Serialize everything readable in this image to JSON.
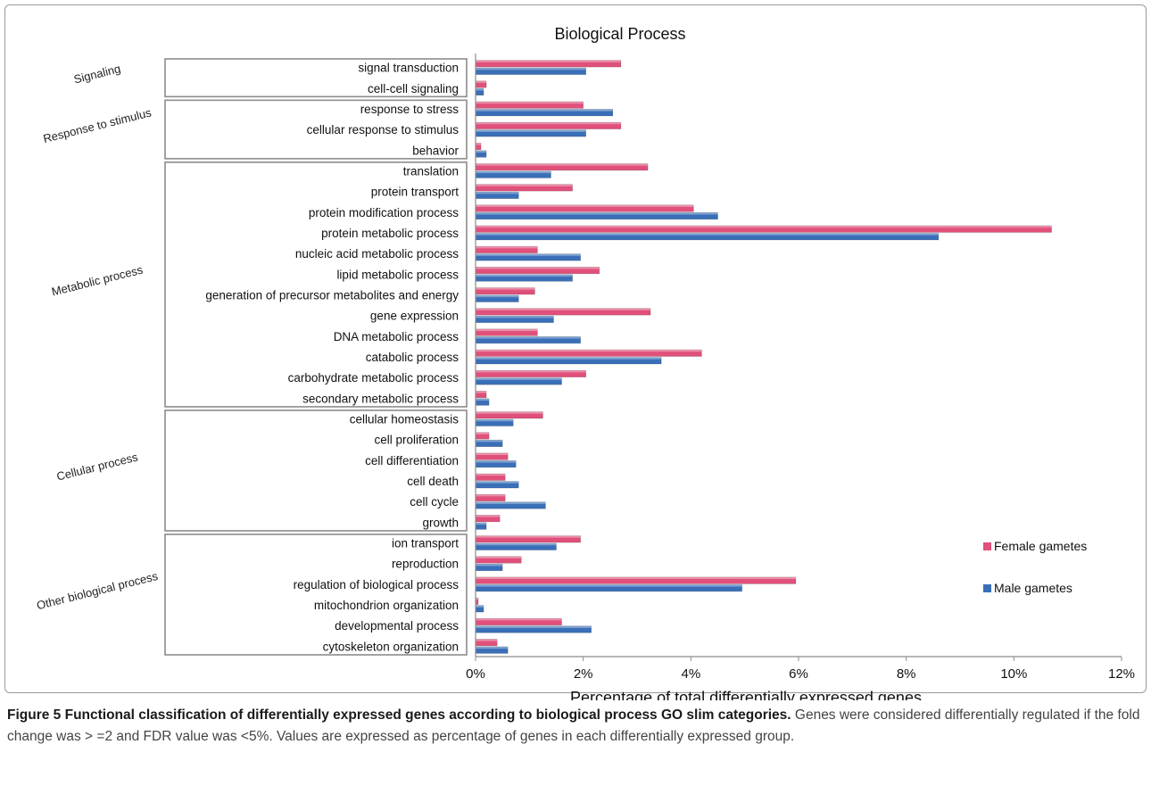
{
  "chart_data": {
    "type": "bar",
    "orientation": "horizontal",
    "title": "Biological Process",
    "xlabel": "Percentage of total differentially expressed genes",
    "ylabel": "",
    "xlim": [
      0,
      12
    ],
    "xticks": [
      0,
      2,
      4,
      6,
      8,
      10,
      12
    ],
    "xtick_labels": [
      "0%",
      "2%",
      "4%",
      "6%",
      "8%",
      "10%",
      "12%"
    ],
    "grid": false,
    "legend_position": "right",
    "categories": [
      "signal transduction",
      "cell-cell signaling",
      "response to stress",
      "cellular response to stimulus",
      "behavior",
      "translation",
      "protein transport",
      "protein modification process",
      "protein metabolic process",
      "nucleic acid metabolic process",
      "lipid metabolic process",
      "generation of precursor metabolites and energy",
      "gene expression",
      "DNA metabolic process",
      "catabolic process",
      "carbohydrate metabolic process",
      "secondary metabolic process",
      "cellular homeostasis",
      "cell proliferation",
      "cell differentiation",
      "cell death",
      "cell cycle",
      "growth",
      "ion transport",
      "reproduction",
      "regulation of biological process",
      "mitochondrion organization",
      "developmental process",
      "cytoskeleton organization"
    ],
    "series": [
      {
        "name": "Female gametes",
        "color": "#e0507a",
        "values": [
          2.7,
          0.2,
          2.0,
          2.7,
          0.1,
          3.2,
          1.8,
          4.05,
          10.7,
          1.15,
          2.3,
          1.1,
          3.25,
          1.15,
          4.2,
          2.05,
          0.2,
          1.25,
          0.25,
          0.6,
          0.55,
          0.55,
          0.45,
          1.95,
          0.85,
          5.95,
          0.05,
          1.6,
          0.4
        ]
      },
      {
        "name": "Male gametes",
        "color": "#3a6fb8",
        "values": [
          2.05,
          0.15,
          2.55,
          2.05,
          0.2,
          1.4,
          0.8,
          4.5,
          8.6,
          1.95,
          1.8,
          0.8,
          1.45,
          1.95,
          3.45,
          1.6,
          0.25,
          0.7,
          0.5,
          0.75,
          0.8,
          1.3,
          0.2,
          1.5,
          0.5,
          4.95,
          0.15,
          2.15,
          0.6
        ]
      }
    ],
    "groups": [
      {
        "label": "Signaling",
        "start": 0,
        "end": 1
      },
      {
        "label": "Response to stimulus",
        "start": 2,
        "end": 4
      },
      {
        "label": "Metabolic process",
        "start": 5,
        "end": 16
      },
      {
        "label": "Cellular process",
        "start": 17,
        "end": 22
      },
      {
        "label": "Other biological process",
        "start": 23,
        "end": 28
      }
    ]
  },
  "caption": {
    "title": "Figure 5 Functional classification of differentially expressed genes according to biological process GO slim categories.",
    "body": "Genes were considered differentially regulated if the fold change was > =2 and FDR value was <5%. Values are expressed as percentage of genes in each differentially expressed group."
  }
}
